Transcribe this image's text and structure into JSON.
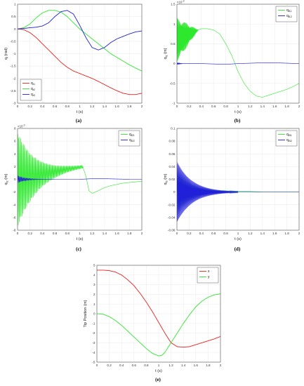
{
  "chart_data": [
    {
      "id": "a",
      "type": "line",
      "caption": "(a)",
      "xlabel": "t (s)",
      "ylabel": "q",
      "ylabel_sub": "l",
      "ylabel_unit": "(rad)",
      "xlim": [
        0,
        2
      ],
      "ylim": [
        -3,
        1
      ],
      "xticks": [
        "0",
        "0.2",
        "0.4",
        "0.6",
        "0.8",
        "1",
        "1.2",
        "1.4",
        "1.6",
        "1.8",
        "2"
      ],
      "yticks": [
        "-3",
        "-2.5",
        "-2",
        "-1.5",
        "-1",
        "-0.5",
        "0",
        "0.5",
        "1"
      ],
      "exponent": "",
      "legend_position": "bottom-left",
      "grid": true,
      "series": [
        {
          "name": "q",
          "name_sub": "r1",
          "color": "#e8201e",
          "x": [
            0,
            0.1,
            0.2,
            0.3,
            0.4,
            0.5,
            0.6,
            0.7,
            0.8,
            0.9,
            1.0,
            1.1,
            1.2,
            1.3,
            1.4,
            1.5,
            1.6,
            1.7,
            1.8,
            1.9,
            2.0
          ],
          "y": [
            0,
            -0.03,
            -0.15,
            -0.35,
            -0.6,
            -0.85,
            -1.1,
            -1.35,
            -1.55,
            -1.7,
            -1.8,
            -1.9,
            -2.0,
            -2.12,
            -2.25,
            -2.38,
            -2.5,
            -2.6,
            -2.65,
            -2.65,
            -2.6
          ]
        },
        {
          "name": "q",
          "name_sub": "r2",
          "color": "#2ee82e",
          "x": [
            0,
            0.1,
            0.2,
            0.3,
            0.4,
            0.5,
            0.6,
            0.7,
            0.8,
            0.9,
            1.0,
            1.1,
            1.2,
            1.3,
            1.4,
            1.5,
            1.6,
            1.7,
            1.8,
            1.9,
            2.0
          ],
          "y": [
            0,
            0.05,
            0.2,
            0.45,
            0.65,
            0.75,
            0.75,
            0.68,
            0.5,
            0.25,
            0.0,
            -0.2,
            -0.4,
            -0.6,
            -0.8,
            -1.0,
            -1.15,
            -1.3,
            -1.45,
            -1.58,
            -1.7
          ]
        },
        {
          "name": "q",
          "name_sub": "r3",
          "color": "#2020d8",
          "x": [
            0,
            0.1,
            0.2,
            0.3,
            0.4,
            0.5,
            0.6,
            0.7,
            0.8,
            0.9,
            1.0,
            1.1,
            1.2,
            1.3,
            1.4,
            1.5,
            1.6,
            1.7,
            1.8,
            1.9,
            2.0
          ],
          "y": [
            0,
            0.02,
            0.05,
            0.07,
            0.12,
            0.25,
            0.5,
            0.7,
            0.75,
            0.6,
            0.15,
            -0.35,
            -0.75,
            -0.85,
            -0.75,
            -0.55,
            -0.4,
            -0.3,
            -0.2,
            -0.12,
            -0.08
          ]
        }
      ]
    },
    {
      "id": "b",
      "type": "line",
      "caption": "(b)",
      "xlabel": "t (s)",
      "ylabel": "q",
      "ylabel_sub": "f1",
      "ylabel_unit": "(m)",
      "xlim": [
        0,
        2
      ],
      "ylim": [
        -1,
        1.5
      ],
      "xticks": [
        "0",
        "0.2",
        "0.4",
        "0.6",
        "0.8",
        "1",
        "1.2",
        "1.4",
        "1.6",
        "1.8",
        "2"
      ],
      "yticks": [
        "-1",
        "-0.5",
        "0",
        "0.5",
        "1",
        "1.5"
      ],
      "exponent": "×10",
      "exponent_power": "-3",
      "legend_position": "top-right",
      "grid": true,
      "series": [
        {
          "name": "q",
          "name_sub": "f11",
          "color": "#2ee82e",
          "oscillation": {
            "t_end": 0.35,
            "amplitude": 0.55,
            "cycles": 40
          },
          "x": [
            0,
            0.35,
            0.4,
            0.5,
            0.6,
            0.7,
            0.8,
            0.9,
            1.0,
            1.1,
            1.2,
            1.3,
            1.4,
            1.5,
            1.6,
            1.7,
            1.8,
            1.9,
            2.0
          ],
          "y": [
            0.6,
            0.85,
            0.88,
            0.88,
            0.85,
            0.75,
            0.5,
            0.2,
            -0.2,
            -0.5,
            -0.7,
            -0.82,
            -0.85,
            -0.8,
            -0.75,
            -0.7,
            -0.65,
            -0.58,
            -0.5
          ]
        },
        {
          "name": "q",
          "name_sub": "f12",
          "color": "#2020d8",
          "oscillation": {
            "t_end": 0.1,
            "amplitude": 0.02,
            "cycles": 10
          },
          "x": [
            0,
            0.2,
            0.4,
            0.6,
            0.8,
            1.0,
            1.2,
            1.4,
            1.6,
            1.8,
            2.0
          ],
          "y": [
            0.0,
            0.0,
            0.0,
            -0.01,
            -0.02,
            0.0,
            0.01,
            0.02,
            0.02,
            0.01,
            0.0
          ]
        }
      ]
    },
    {
      "id": "c",
      "type": "line",
      "caption": "(c)",
      "xlabel": "t (s)",
      "ylabel": "q",
      "ylabel_sub": "f2",
      "ylabel_unit": "(m)",
      "xlim": [
        0,
        2
      ],
      "ylim": [
        -8,
        8
      ],
      "xticks": [
        "0",
        "0.2",
        "0.4",
        "0.6",
        "0.8",
        "1",
        "1.2",
        "1.4",
        "1.6",
        "1.8",
        "2"
      ],
      "yticks": [
        "-8",
        "-6",
        "-4",
        "-2",
        "0",
        "2",
        "4",
        "6",
        "8"
      ],
      "exponent": "×10",
      "exponent_power": "-3",
      "legend_position": "top-right",
      "grid": true,
      "series": [
        {
          "name": "q",
          "name_sub": "f21",
          "color": "#2ee82e",
          "oscillation": {
            "t_end": 1.05,
            "amplitude": 7.5,
            "cycles": 70,
            "decay": 3.5
          },
          "x": [
            0,
            0.2,
            0.4,
            0.6,
            0.8,
            1.0,
            1.05,
            1.1,
            1.15,
            1.2,
            1.3,
            1.4,
            1.5,
            1.6,
            1.7,
            1.8,
            1.9,
            2.0
          ],
          "y": [
            0,
            0.3,
            0.8,
            1.2,
            1.6,
            1.9,
            2.0,
            0.5,
            -1.8,
            -2.2,
            -1.8,
            -1.3,
            -1.0,
            -0.8,
            -0.6,
            -0.5,
            -0.4,
            -0.3
          ]
        },
        {
          "name": "q",
          "name_sub": "f22",
          "color": "#2020d8",
          "oscillation": {
            "t_end": 0.6,
            "amplitude": 0.6,
            "cycles": 40,
            "decay": 5
          },
          "x": [
            0,
            0.4,
            0.8,
            1.0,
            1.2,
            1.4,
            1.6,
            1.8,
            2.0
          ],
          "y": [
            0,
            0,
            0,
            0,
            0.1,
            0.1,
            0.05,
            0.0,
            0.0
          ]
        }
      ]
    },
    {
      "id": "d",
      "type": "line",
      "caption": "(d)",
      "xlabel": "t (s)",
      "ylabel": "q",
      "ylabel_sub": "f3",
      "ylabel_unit": "(m)",
      "xlim": [
        0,
        2
      ],
      "ylim": [
        -0.06,
        0.1
      ],
      "xticks": [
        "0",
        "0.2",
        "0.4",
        "0.6",
        "0.8",
        "1",
        "1.2",
        "1.4",
        "1.6",
        "1.8",
        "2"
      ],
      "yticks": [
        "-0.06",
        "-0.04",
        "-0.02",
        "0",
        "0.02",
        "0.04",
        "0.06",
        "0.08",
        "0.1"
      ],
      "exponent": "",
      "legend_position": "top-right",
      "grid": true,
      "series": [
        {
          "name": "q",
          "name_sub": "f31",
          "color": "#2ee82e",
          "oscillation": {
            "t_end": 1.0,
            "amplitude": 0.03,
            "cycles": 90,
            "decay": 4
          },
          "x": [
            0,
            1.0,
            1.2,
            1.4,
            1.6,
            1.8,
            2.0
          ],
          "y": [
            0,
            0.001,
            0.001,
            0,
            0,
            0,
            0
          ]
        },
        {
          "name": "q",
          "name_sub": "f32",
          "color": "#2020d8",
          "oscillation": {
            "t_end": 1.0,
            "amplitude": 0.05,
            "cycles": 90,
            "decay": 4
          },
          "x": [
            0,
            1.0,
            2.0
          ],
          "y": [
            0,
            0,
            0
          ]
        }
      ]
    },
    {
      "id": "e",
      "type": "line",
      "caption": "(e)",
      "xlabel": "t (s)",
      "ylabel": "Tip Position (m)",
      "ylabel_sub": "",
      "ylabel_unit": "",
      "xlim": [
        0,
        2
      ],
      "ylim": [
        -5,
        5
      ],
      "xticks": [
        "0",
        "0.2",
        "0.4",
        "0.6",
        "0.8",
        "1",
        "1.2",
        "1.4",
        "1.6",
        "1.8",
        "2"
      ],
      "yticks": [
        "-5",
        "-4",
        "-3",
        "-2",
        "-1",
        "0",
        "1",
        "2",
        "3",
        "4",
        "5"
      ],
      "exponent": "",
      "legend_position": "top-right",
      "grid": true,
      "series": [
        {
          "name": "x",
          "name_sub": "",
          "color": "#e8201e",
          "x": [
            0,
            0.1,
            0.2,
            0.3,
            0.4,
            0.5,
            0.6,
            0.7,
            0.8,
            0.9,
            1.0,
            1.1,
            1.2,
            1.3,
            1.4,
            1.5,
            1.6,
            1.7,
            1.8,
            1.9,
            2.0
          ],
          "y": [
            4.5,
            4.5,
            4.45,
            4.3,
            4.0,
            3.5,
            2.9,
            2.1,
            1.2,
            0.2,
            -0.9,
            -2.0,
            -3.0,
            -3.4,
            -3.45,
            -3.4,
            -3.2,
            -3.0,
            -2.8,
            -2.6,
            -2.35
          ]
        },
        {
          "name": "y",
          "name_sub": "",
          "color": "#2ee82e",
          "x": [
            0,
            0.1,
            0.2,
            0.3,
            0.4,
            0.5,
            0.6,
            0.7,
            0.8,
            0.9,
            1.0,
            1.05,
            1.1,
            1.2,
            1.3,
            1.4,
            1.5,
            1.6,
            1.7,
            1.8,
            1.9,
            2.0
          ],
          "y": [
            0,
            -0.05,
            -0.3,
            -0.7,
            -1.2,
            -1.8,
            -2.4,
            -3.0,
            -3.6,
            -4.1,
            -4.35,
            -4.3,
            -4.0,
            -3.0,
            -2.0,
            -1.0,
            -0.1,
            0.7,
            1.3,
            1.7,
            1.95,
            2.05
          ]
        }
      ]
    }
  ]
}
